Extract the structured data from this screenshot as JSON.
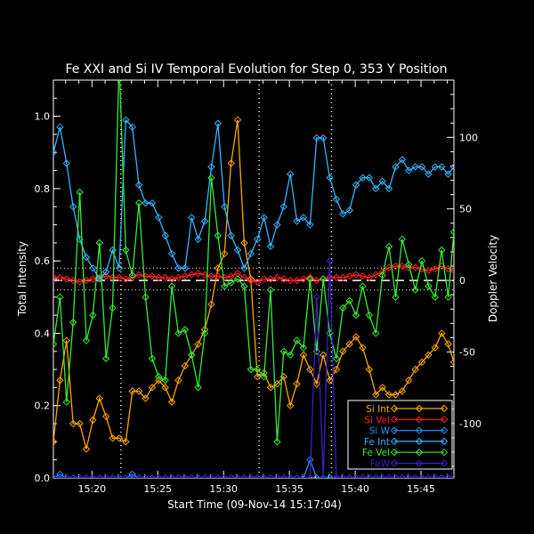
{
  "chart_data": {
    "type": "line",
    "title": "Fe XXI and Si IV Temporal Evolution for Step 0, 353 Y Position",
    "xlabel": "Start Time (09-Nov-14 15:17:04)",
    "ylabel_left": "Total Intensity",
    "ylabel_right": "Doppler Velocity",
    "xlim": [
      17.07,
      47.5
    ],
    "ylim_left": [
      0.0,
      1.1
    ],
    "ylim_right": [
      -138,
      140
    ],
    "x_ticks": [
      {
        "v": 20,
        "label": "15:20"
      },
      {
        "v": 25,
        "label": "15:25"
      },
      {
        "v": 30,
        "label": "15:30"
      },
      {
        "v": 35,
        "label": "15:35"
      },
      {
        "v": 40,
        "label": "15:40"
      },
      {
        "v": 45,
        "label": "15:45"
      }
    ],
    "y_left_ticks": [
      {
        "v": 0.0,
        "label": "0.0"
      },
      {
        "v": 0.2,
        "label": "0.2"
      },
      {
        "v": 0.4,
        "label": "0.4"
      },
      {
        "v": 0.6,
        "label": "0.6"
      },
      {
        "v": 0.8,
        "label": "0.8"
      },
      {
        "v": 1.0,
        "label": "1.0"
      }
    ],
    "y_right_ticks": [
      {
        "v": -100,
        "label": "-100"
      },
      {
        "v": -50,
        "label": "-50"
      },
      {
        "v": 0,
        "label": "0"
      },
      {
        "v": 50,
        "label": "50"
      },
      {
        "v": 100,
        "label": "100"
      }
    ],
    "vertical_lines": [
      22.2,
      32.7,
      38.2
    ],
    "dotted_hlines_left": [
      0.52,
      0.58
    ],
    "zero_velocity_line": 0,
    "x": [
      17.07,
      17.57,
      18.07,
      18.57,
      19.07,
      19.57,
      20.07,
      20.57,
      21.07,
      21.57,
      22.07,
      22.57,
      23.07,
      23.57,
      24.07,
      24.57,
      25.07,
      25.57,
      26.07,
      26.57,
      27.07,
      27.57,
      28.07,
      28.57,
      29.07,
      29.57,
      30.07,
      30.57,
      31.07,
      31.57,
      32.07,
      32.57,
      33.07,
      33.57,
      34.07,
      34.57,
      35.07,
      35.57,
      36.07,
      36.57,
      37.07,
      37.57,
      38.07,
      38.57,
      39.07,
      39.57,
      40.07,
      40.57,
      41.07,
      41.57,
      42.07,
      42.57,
      43.07,
      43.57,
      44.07,
      44.57,
      45.07,
      45.57,
      46.07,
      46.57,
      47.07,
      47.5
    ],
    "series": [
      {
        "name": "Si Int",
        "color": "#ffa500",
        "axis": "left",
        "values": [
          0.1,
          0.27,
          0.38,
          0.15,
          0.15,
          0.08,
          0.16,
          0.22,
          0.17,
          0.11,
          0.11,
          0.1,
          0.24,
          0.24,
          0.22,
          0.25,
          0.27,
          0.25,
          0.21,
          0.27,
          0.31,
          0.34,
          0.37,
          0.41,
          0.48,
          0.58,
          0.62,
          0.87,
          0.99,
          0.65,
          0.55,
          0.28,
          0.29,
          0.25,
          0.26,
          0.28,
          0.2,
          0.26,
          0.34,
          0.3,
          0.26,
          0.34,
          0.27,
          0.3,
          0.35,
          0.37,
          0.39,
          0.36,
          0.3,
          0.23,
          0.25,
          0.23,
          0.23,
          0.24,
          0.27,
          0.3,
          0.32,
          0.34,
          0.36,
          0.4,
          0.37,
          0.32
        ]
      },
      {
        "name": "Si Vel",
        "color": "#ff2020",
        "axis": "right",
        "values": [
          2,
          2,
          1,
          0,
          -1,
          0,
          1,
          2,
          3,
          2,
          2,
          1,
          2,
          4,
          3,
          3,
          2,
          2,
          1,
          2,
          3,
          4,
          5,
          4,
          3,
          3,
          2,
          3,
          5,
          2,
          0,
          -1,
          1,
          1,
          2,
          1,
          0,
          0,
          1,
          2,
          0,
          1,
          2,
          2,
          2,
          3,
          4,
          3,
          2,
          4,
          6,
          9,
          10,
          10,
          9,
          9,
          8,
          7,
          8,
          10,
          8,
          7
        ]
      },
      {
        "name": "Si W",
        "color": "#1e90ff",
        "axis": "left",
        "values": [
          0.0,
          0.01,
          0.0,
          0.0,
          0.0,
          0.0,
          0.0,
          0.0,
          0.0,
          0.0,
          0.0,
          0.0,
          0.01,
          0.0,
          0.0,
          0.0,
          0.0,
          0.0,
          0.0,
          0.0,
          0.0,
          0.0,
          0.0,
          0.0,
          0.0,
          0.0,
          0.0,
          0.0,
          0.0,
          0.0,
          0.0,
          0.0,
          0.0,
          0.0,
          0.0,
          0.0,
          0.0,
          0.0,
          0.0,
          0.05,
          0.0,
          0.0,
          0.0,
          0.0,
          0.0,
          0.0,
          0.0,
          0.0,
          0.0,
          0.0,
          0.0,
          0.0,
          0.0,
          0.0,
          0.0,
          0.0,
          0.0,
          0.0,
          0.0,
          0.0,
          0.0,
          0.0
        ]
      },
      {
        "name": "Fe Int",
        "color": "#33b5ff",
        "axis": "left",
        "values": [
          0.9,
          0.97,
          0.87,
          0.75,
          0.66,
          0.61,
          0.58,
          0.55,
          0.57,
          0.63,
          0.58,
          0.99,
          0.97,
          0.81,
          0.76,
          0.76,
          0.72,
          0.67,
          0.62,
          0.58,
          0.58,
          0.72,
          0.66,
          0.71,
          0.86,
          0.98,
          0.75,
          0.67,
          0.63,
          0.58,
          0.62,
          0.66,
          0.72,
          0.64,
          0.7,
          0.75,
          0.84,
          0.71,
          0.72,
          0.7,
          0.94,
          0.94,
          0.83,
          0.77,
          0.73,
          0.74,
          0.81,
          0.83,
          0.83,
          0.8,
          0.82,
          0.8,
          0.86,
          0.88,
          0.85,
          0.86,
          0.86,
          0.84,
          0.86,
          0.86,
          0.84,
          0.86
        ]
      },
      {
        "name": "Fe Vel",
        "color": "#33ee33",
        "axis": "left",
        "values": [
          0.37,
          0.5,
          0.21,
          0.43,
          0.79,
          0.38,
          0.45,
          0.65,
          0.33,
          0.47,
          1.15,
          0.63,
          0.56,
          0.76,
          0.5,
          0.33,
          0.28,
          0.27,
          0.53,
          0.4,
          0.41,
          0.34,
          0.25,
          0.4,
          0.83,
          0.67,
          0.53,
          0.54,
          0.55,
          0.53,
          0.3,
          0.3,
          0.28,
          0.52,
          0.1,
          0.35,
          0.34,
          0.38,
          0.36,
          0.55,
          0.35,
          0.55,
          0.4,
          0.33,
          0.47,
          0.49,
          0.45,
          0.53,
          0.45,
          0.4,
          0.56,
          0.64,
          0.5,
          0.66,
          0.59,
          0.52,
          0.6,
          0.53,
          0.5,
          0.63,
          0.5,
          0.68
        ]
      },
      {
        "name": "FeW",
        "color": "#3a1fbf",
        "axis": "left",
        "values": [
          0.0,
          0.0,
          0.0,
          0.0,
          0.0,
          0.0,
          0.0,
          0.0,
          0.0,
          0.0,
          0.0,
          0.0,
          0.0,
          0.0,
          0.0,
          0.0,
          0.0,
          0.0,
          0.0,
          0.0,
          0.0,
          0.0,
          0.0,
          0.0,
          0.0,
          0.0,
          0.0,
          0.0,
          0.0,
          0.0,
          0.0,
          0.0,
          0.0,
          0.0,
          0.0,
          0.0,
          0.0,
          0.0,
          0.0,
          0.0,
          0.5,
          0.0,
          0.6,
          0.0,
          0.0,
          0.0,
          0.0,
          0.0,
          0.0,
          0.0,
          0.0,
          0.0,
          0.0,
          0.0,
          0.0,
          0.0,
          0.0,
          0.0,
          0.0,
          0.0,
          0.0,
          0.0
        ]
      }
    ]
  }
}
